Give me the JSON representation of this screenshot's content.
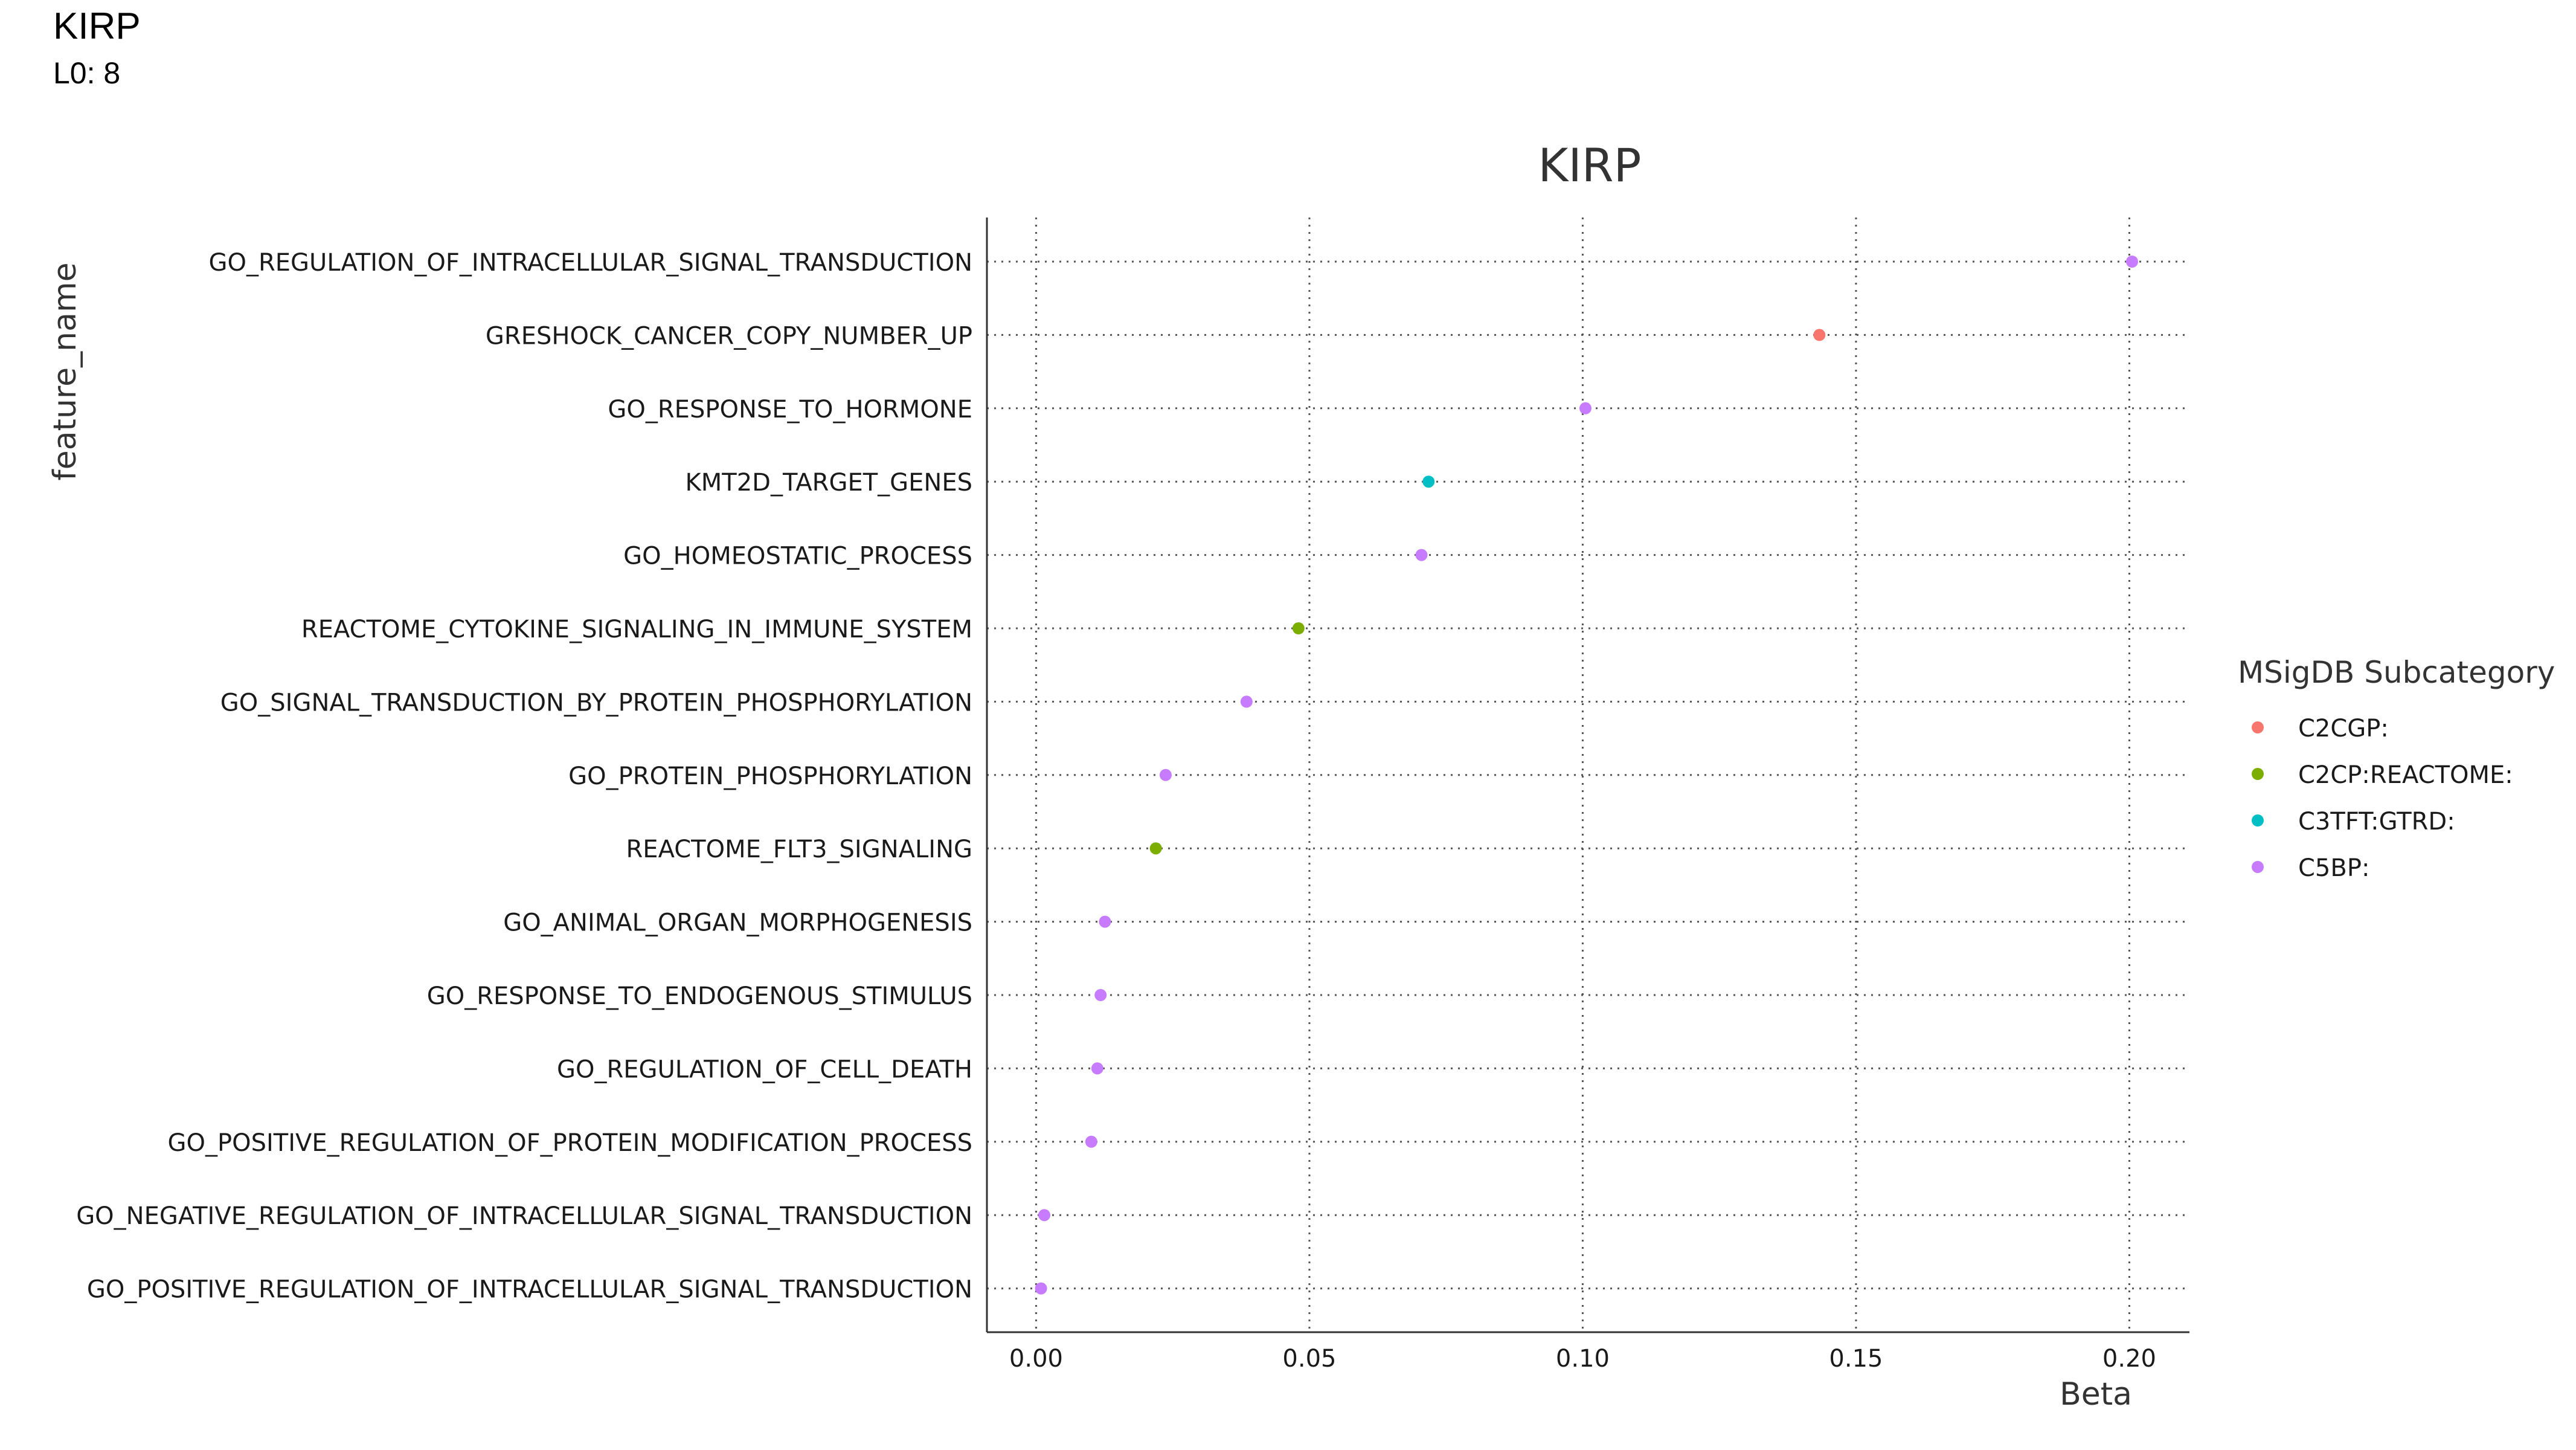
{
  "header": {
    "title": "KIRP",
    "subtitle": "L0: 8"
  },
  "chart_data": {
    "type": "scatter",
    "title": "KIRP",
    "xlabel": "Beta",
    "ylabel": "feature_name",
    "xlim": [
      -0.009,
      0.211
    ],
    "xticks": [
      0.0,
      0.05,
      0.1,
      0.15,
      0.2
    ],
    "xtick_labels": [
      "0.00",
      "0.05",
      "0.10",
      "0.15",
      "0.20"
    ],
    "grid": true,
    "legend_title": "MSigDB Subcategory",
    "legend_position": "right",
    "categories": [
      {
        "name": "C2CGP:",
        "color": "#F8766D"
      },
      {
        "name": "C2CP:REACTOME:",
        "color": "#7CAE00"
      },
      {
        "name": "C3TFT:GTRD:",
        "color": "#00BFC4"
      },
      {
        "name": "C5BP:",
        "color": "#C77CFF"
      }
    ],
    "points": [
      {
        "feature": "GO_REGULATION_OF_INTRACELLULAR_SIGNAL_TRANSDUCTION",
        "beta": 0.2005,
        "category": "C5BP:"
      },
      {
        "feature": "GRESHOCK_CANCER_COPY_NUMBER_UP",
        "beta": 0.1433,
        "category": "C2CGP:"
      },
      {
        "feature": "GO_RESPONSE_TO_HORMONE",
        "beta": 0.1005,
        "category": "C5BP:"
      },
      {
        "feature": "KMT2D_TARGET_GENES",
        "beta": 0.0718,
        "category": "C3TFT:GTRD:"
      },
      {
        "feature": "GO_HOMEOSTATIC_PROCESS",
        "beta": 0.0705,
        "category": "C5BP:"
      },
      {
        "feature": "REACTOME_CYTOKINE_SIGNALING_IN_IMMUNE_SYSTEM",
        "beta": 0.048,
        "category": "C2CP:REACTOME:"
      },
      {
        "feature": "GO_SIGNAL_TRANSDUCTION_BY_PROTEIN_PHOSPHORYLATION",
        "beta": 0.0385,
        "category": "C5BP:"
      },
      {
        "feature": "GO_PROTEIN_PHOSPHORYLATION",
        "beta": 0.0237,
        "category": "C5BP:"
      },
      {
        "feature": "REACTOME_FLT3_SIGNALING",
        "beta": 0.0219,
        "category": "C2CP:REACTOME:"
      },
      {
        "feature": "GO_ANIMAL_ORGAN_MORPHOGENESIS",
        "beta": 0.0126,
        "category": "C5BP:"
      },
      {
        "feature": "GO_RESPONSE_TO_ENDOGENOUS_STIMULUS",
        "beta": 0.0118,
        "category": "C5BP:"
      },
      {
        "feature": "GO_REGULATION_OF_CELL_DEATH",
        "beta": 0.0112,
        "category": "C5BP:"
      },
      {
        "feature": "GO_POSITIVE_REGULATION_OF_PROTEIN_MODIFICATION_PROCESS",
        "beta": 0.0101,
        "category": "C5BP:"
      },
      {
        "feature": "GO_NEGATIVE_REGULATION_OF_INTRACELLULAR_SIGNAL_TRANSDUCTION",
        "beta": 0.0015,
        "category": "C5BP:"
      },
      {
        "feature": "GO_POSITIVE_REGULATION_OF_INTRACELLULAR_SIGNAL_TRANSDUCTION",
        "beta": 0.0009,
        "category": "C5BP:"
      }
    ]
  }
}
